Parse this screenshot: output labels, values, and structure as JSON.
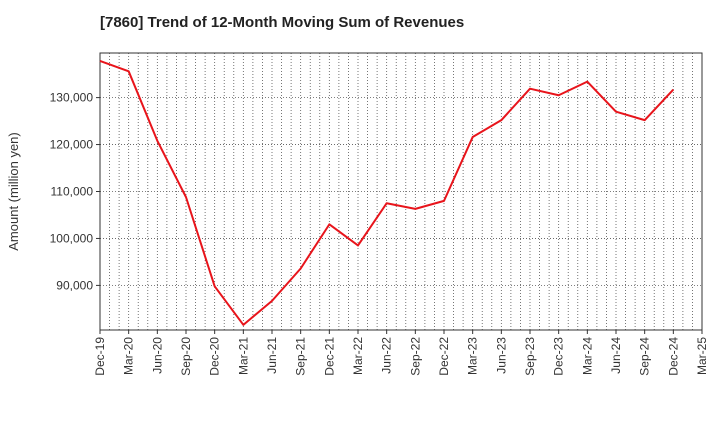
{
  "chart_data": {
    "type": "line",
    "title": "[7860]  Trend of 12-Month Moving Sum of Revenues",
    "ylabel": "Amount (million yen)",
    "xlabel": "",
    "x": [
      "Dec-19",
      "Mar-20",
      "Jun-20",
      "Sep-20",
      "Dec-20",
      "Mar-21",
      "Jun-21",
      "Sep-21",
      "Dec-21",
      "Mar-22",
      "Jun-22",
      "Sep-22",
      "Dec-22",
      "Mar-23",
      "Jun-23",
      "Sep-23",
      "Dec-23",
      "Mar-24",
      "Jun-24",
      "Sep-24",
      "Dec-24",
      "Mar-25"
    ],
    "series": [
      {
        "values": [
          137800,
          135600,
          120800,
          108800,
          89800,
          81600,
          86700,
          93600,
          103000,
          98500,
          107500,
          106300,
          108000,
          121600,
          125200,
          131900,
          130500,
          133400,
          127000,
          125200,
          131700,
          null
        ]
      }
    ],
    "yticks": [
      90000,
      100000,
      110000,
      120000,
      130000
    ],
    "ytick_labels": [
      "90,000",
      "100,000",
      "110,000",
      "120,000",
      "130,000"
    ],
    "ylim": [
      80500,
      139500
    ],
    "grid": true,
    "colors": {
      "line": "#e8141b",
      "grid": "#555555",
      "frame": "#333333"
    }
  }
}
